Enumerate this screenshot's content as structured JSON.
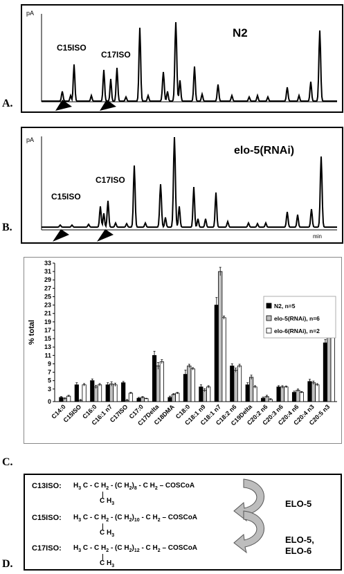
{
  "panelA": {
    "letter": "A.",
    "ylabel": "pA",
    "title": "N2",
    "peak_c15": "C15ISO",
    "peak_c17": "C17ISO"
  },
  "panelB": {
    "letter": "B.",
    "ylabel": "pA",
    "title": "elo-5(RNAi)",
    "peak_c15": "C15ISO",
    "peak_c17": "C17ISO",
    "xunit": "min"
  },
  "panelC": {
    "letter": "C."
  },
  "chart_data": {
    "type": "bar",
    "ylabel": "% total",
    "ylim": [
      0,
      33
    ],
    "yticks": [
      0,
      3,
      5,
      7,
      9,
      11,
      13,
      15,
      17,
      19,
      21,
      23,
      25,
      27,
      29,
      31,
      33
    ],
    "categories": [
      "C14:0",
      "C15ISO",
      "C16:0",
      "C16:1 n7",
      "C17ISO",
      "C17:0",
      "C17Delta",
      "C18DMA",
      "C18:0",
      "C18:1 n9",
      "C18:1 n7",
      "C18:2 n6",
      "C19Delta",
      "C20:2 n6",
      "C20:3 n6",
      "C20:4 n6",
      "C20:4 n3",
      "C20:5 n3"
    ],
    "series": [
      {
        "name": "N2, n=5",
        "color": "#000000",
        "values": [
          1.0,
          4.0,
          5.0,
          4.0,
          4.5,
          0.8,
          11.0,
          1.0,
          6.5,
          3.5,
          23.0,
          8.5,
          4.0,
          0.8,
          3.5,
          2.2,
          4.8,
          14.0
        ]
      },
      {
        "name": "elo-5(RNAi), n=6",
        "color": "#bfbfbf",
        "values": [
          0.7,
          0.3,
          3.5,
          4.2,
          0.3,
          1.0,
          8.5,
          1.7,
          8.5,
          2.7,
          31.0,
          7.5,
          5.8,
          1.2,
          3.5,
          2.7,
          4.5,
          16.0
        ]
      },
      {
        "name": "elo-6(RNAi), n=2",
        "color": "#ffffff",
        "values": [
          1.3,
          4.0,
          4.0,
          4.0,
          2.0,
          0.7,
          9.5,
          2.0,
          7.8,
          3.5,
          20.0,
          8.5,
          3.5,
          0.5,
          3.5,
          2.2,
          4.0,
          17.0
        ]
      }
    ],
    "errors": [
      [
        0.2,
        0.5,
        0.4,
        0.5,
        0.3,
        0.2,
        1.0,
        0.3,
        1.0,
        0.5,
        1.8,
        0.5,
        0.5,
        0.3,
        0.3,
        0.3,
        0.5,
        0.8
      ],
      [
        0.2,
        0.2,
        0.4,
        0.5,
        0.2,
        0.2,
        0.8,
        0.2,
        0.4,
        0.4,
        1.0,
        0.5,
        0.5,
        0.3,
        0.3,
        0.3,
        0.4,
        0.8
      ],
      [
        0.2,
        0.3,
        0.3,
        0.4,
        0.2,
        0.1,
        0.5,
        0.2,
        0.3,
        0.3,
        0.4,
        0.4,
        0.3,
        0.2,
        0.2,
        0.2,
        0.3,
        0.6
      ]
    ],
    "legend_position": "top-right",
    "grid": false
  },
  "panelD": {
    "letter": "D.",
    "rows": [
      {
        "name": "C13ISO:",
        "pre": "H",
        "s1": "3",
        "mid1": "C - C H",
        "s2": "2",
        "mid2": " - (C H",
        "s3": "2",
        "mid3": ")",
        "n": "8",
        "post": " - C H",
        "s4": "2",
        "tail": " – COSCoA",
        "branch": "C H",
        "bs": "3"
      },
      {
        "name": "C15ISO:",
        "pre": "H",
        "s1": "3",
        "mid1": "C - C H",
        "s2": "2",
        "mid2": " - (C H",
        "s3": "2",
        "mid3": ")",
        "n": "10",
        "post": " - C H",
        "s4": "2",
        "tail": " – COSCoA",
        "branch": "C H",
        "bs": "3"
      },
      {
        "name": "C17ISO:",
        "pre": "H",
        "s1": "3",
        "mid1": "C - C H",
        "s2": "2",
        "mid2": " - (C H",
        "s3": "2",
        "mid3": ")",
        "n": "12",
        "post": " - C H",
        "s4": "2",
        "tail": " – COSCoA",
        "branch": "C H",
        "bs": "3"
      }
    ],
    "enzyme1": "ELO-5",
    "enzyme2a": "ELO-5,",
    "enzyme2b": "ELO-6"
  }
}
